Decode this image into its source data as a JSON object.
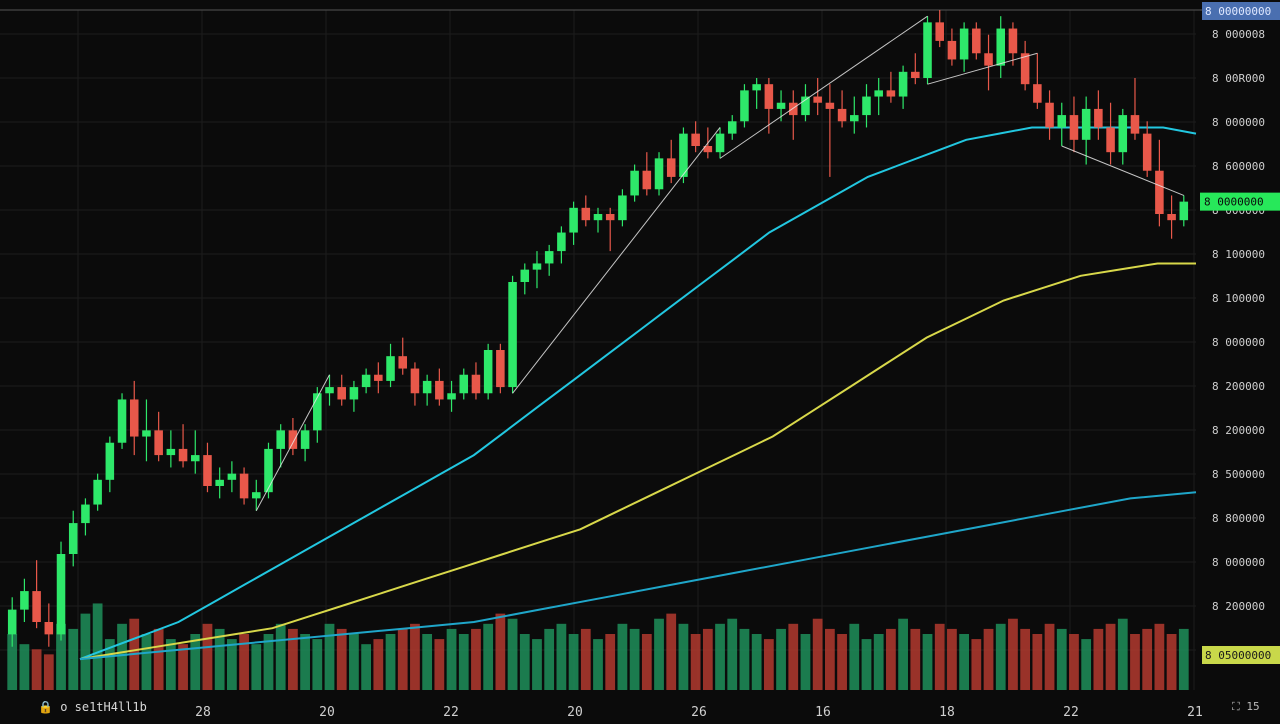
{
  "window": {
    "footer_label": "o se1tH4ll1b",
    "footer_lock_icon": "lock-icon",
    "footer_right_icon": "fullscreen-icon",
    "footer_right_label": "15"
  },
  "colors": {
    "background": "#0b0b0b",
    "grid": "#1d1d1d",
    "up": "#2ee86a",
    "down": "#e8584a",
    "vol_up": "#1f8f5a",
    "vol_down": "#b3392f",
    "ma_cyan": "#22c7e0",
    "ma_yellow": "#d8d84a",
    "ma_low_cyan": "#1fa6c9",
    "trend_white": "#e6e6e6",
    "price_label_green": "#27e85a",
    "price_label_blue": "#4a6fb0",
    "price_label_yellow": "#c9d84a"
  },
  "chart_data": {
    "type": "candlestick",
    "title": "",
    "xlabel": "",
    "ylabel": "",
    "x_tick_labels": [
      "28",
      "20",
      "22",
      "20",
      "26",
      "16",
      "18",
      "22",
      "21"
    ],
    "y_tick_labels": [
      "8 000008",
      "8 00R000",
      "8 000000",
      "8 600000",
      "8 000000",
      "8 100000",
      "8 100000",
      "8 000000",
      "8 200000",
      "8 200000",
      "8 500000",
      "8 800000",
      "8 000000",
      "8 200000",
      "8 200000"
    ],
    "ylim": [
      0,
      100
    ],
    "current_price_label": "8 0000000",
    "top_price_label": "8 00000000",
    "lower_price_label": "8 05000000",
    "candles": [
      {
        "o": 4,
        "h": 10,
        "l": 2,
        "c": 8
      },
      {
        "o": 8,
        "h": 13,
        "l": 6,
        "c": 11
      },
      {
        "o": 11,
        "h": 16,
        "l": 5,
        "c": 6
      },
      {
        "o": 6,
        "h": 9,
        "l": 2,
        "c": 4
      },
      {
        "o": 4,
        "h": 19,
        "l": 3,
        "c": 17
      },
      {
        "o": 17,
        "h": 24,
        "l": 15,
        "c": 22
      },
      {
        "o": 22,
        "h": 26,
        "l": 20,
        "c": 25
      },
      {
        "o": 25,
        "h": 30,
        "l": 24,
        "c": 29
      },
      {
        "o": 29,
        "h": 36,
        "l": 27,
        "c": 35
      },
      {
        "o": 35,
        "h": 43,
        "l": 34,
        "c": 42
      },
      {
        "o": 42,
        "h": 45,
        "l": 33,
        "c": 36
      },
      {
        "o": 36,
        "h": 42,
        "l": 32,
        "c": 37
      },
      {
        "o": 37,
        "h": 40,
        "l": 32,
        "c": 33
      },
      {
        "o": 33,
        "h": 37,
        "l": 31,
        "c": 34
      },
      {
        "o": 34,
        "h": 38,
        "l": 31,
        "c": 32
      },
      {
        "o": 32,
        "h": 37,
        "l": 30,
        "c": 33
      },
      {
        "o": 33,
        "h": 35,
        "l": 27,
        "c": 28
      },
      {
        "o": 28,
        "h": 31,
        "l": 26,
        "c": 29
      },
      {
        "o": 29,
        "h": 32,
        "l": 27,
        "c": 30
      },
      {
        "o": 30,
        "h": 31,
        "l": 25,
        "c": 26
      },
      {
        "o": 26,
        "h": 29,
        "l": 24,
        "c": 27
      },
      {
        "o": 27,
        "h": 35,
        "l": 26,
        "c": 34
      },
      {
        "o": 34,
        "h": 38,
        "l": 31,
        "c": 37
      },
      {
        "o": 37,
        "h": 39,
        "l": 33,
        "c": 34
      },
      {
        "o": 34,
        "h": 38,
        "l": 32,
        "c": 37
      },
      {
        "o": 37,
        "h": 44,
        "l": 35,
        "c": 43
      },
      {
        "o": 43,
        "h": 46,
        "l": 41,
        "c": 44
      },
      {
        "o": 44,
        "h": 46,
        "l": 41,
        "c": 42
      },
      {
        "o": 42,
        "h": 45,
        "l": 40,
        "c": 44
      },
      {
        "o": 44,
        "h": 47,
        "l": 43,
        "c": 46
      },
      {
        "o": 46,
        "h": 48,
        "l": 43,
        "c": 45
      },
      {
        "o": 45,
        "h": 51,
        "l": 44,
        "c": 49
      },
      {
        "o": 49,
        "h": 52,
        "l": 46,
        "c": 47
      },
      {
        "o": 47,
        "h": 48,
        "l": 41,
        "c": 43
      },
      {
        "o": 43,
        "h": 46,
        "l": 41,
        "c": 45
      },
      {
        "o": 45,
        "h": 47,
        "l": 41,
        "c": 42
      },
      {
        "o": 42,
        "h": 45,
        "l": 40,
        "c": 43
      },
      {
        "o": 43,
        "h": 47,
        "l": 42,
        "c": 46
      },
      {
        "o": 46,
        "h": 48,
        "l": 42,
        "c": 43
      },
      {
        "o": 43,
        "h": 51,
        "l": 42,
        "c": 50
      },
      {
        "o": 50,
        "h": 51,
        "l": 43,
        "c": 44
      },
      {
        "o": 44,
        "h": 62,
        "l": 43,
        "c": 61
      },
      {
        "o": 61,
        "h": 64,
        "l": 59,
        "c": 63
      },
      {
        "o": 63,
        "h": 66,
        "l": 60,
        "c": 64
      },
      {
        "o": 64,
        "h": 67,
        "l": 62,
        "c": 66
      },
      {
        "o": 66,
        "h": 70,
        "l": 64,
        "c": 69
      },
      {
        "o": 69,
        "h": 74,
        "l": 67,
        "c": 73
      },
      {
        "o": 73,
        "h": 75,
        "l": 70,
        "c": 71
      },
      {
        "o": 71,
        "h": 73,
        "l": 69,
        "c": 72
      },
      {
        "o": 72,
        "h": 73,
        "l": 66,
        "c": 71
      },
      {
        "o": 71,
        "h": 76,
        "l": 70,
        "c": 75
      },
      {
        "o": 75,
        "h": 80,
        "l": 74,
        "c": 79
      },
      {
        "o": 79,
        "h": 82,
        "l": 75,
        "c": 76
      },
      {
        "o": 76,
        "h": 82,
        "l": 75,
        "c": 81
      },
      {
        "o": 81,
        "h": 84,
        "l": 77,
        "c": 78
      },
      {
        "o": 78,
        "h": 86,
        "l": 77,
        "c": 85
      },
      {
        "o": 85,
        "h": 87,
        "l": 82,
        "c": 83
      },
      {
        "o": 83,
        "h": 86,
        "l": 81,
        "c": 82
      },
      {
        "o": 82,
        "h": 86,
        "l": 81,
        "c": 85
      },
      {
        "o": 85,
        "h": 88,
        "l": 84,
        "c": 87
      },
      {
        "o": 87,
        "h": 93,
        "l": 86,
        "c": 92
      },
      {
        "o": 92,
        "h": 94,
        "l": 89,
        "c": 93
      },
      {
        "o": 93,
        "h": 94,
        "l": 85,
        "c": 89
      },
      {
        "o": 89,
        "h": 92,
        "l": 87,
        "c": 90
      },
      {
        "o": 90,
        "h": 92,
        "l": 84,
        "c": 88
      },
      {
        "o": 88,
        "h": 93,
        "l": 87,
        "c": 91
      },
      {
        "o": 91,
        "h": 94,
        "l": 88,
        "c": 90
      },
      {
        "o": 90,
        "h": 93,
        "l": 78,
        "c": 89
      },
      {
        "o": 89,
        "h": 92,
        "l": 86,
        "c": 87
      },
      {
        "o": 87,
        "h": 91,
        "l": 85,
        "c": 88
      },
      {
        "o": 88,
        "h": 93,
        "l": 86,
        "c": 91
      },
      {
        "o": 91,
        "h": 94,
        "l": 88,
        "c": 92
      },
      {
        "o": 92,
        "h": 95,
        "l": 90,
        "c": 91
      },
      {
        "o": 91,
        "h": 96,
        "l": 89,
        "c": 95
      },
      {
        "o": 95,
        "h": 98,
        "l": 93,
        "c": 94
      },
      {
        "o": 94,
        "h": 104,
        "l": 93,
        "c": 103
      },
      {
        "o": 103,
        "h": 105,
        "l": 99,
        "c": 100
      },
      {
        "o": 100,
        "h": 102,
        "l": 96,
        "c": 97
      },
      {
        "o": 97,
        "h": 103,
        "l": 95,
        "c": 102
      },
      {
        "o": 102,
        "h": 103,
        "l": 97,
        "c": 98
      },
      {
        "o": 98,
        "h": 101,
        "l": 92,
        "c": 96
      },
      {
        "o": 96,
        "h": 104,
        "l": 94,
        "c": 102
      },
      {
        "o": 102,
        "h": 103,
        "l": 96,
        "c": 98
      },
      {
        "o": 98,
        "h": 100,
        "l": 92,
        "c": 93
      },
      {
        "o": 93,
        "h": 98,
        "l": 89,
        "c": 90
      },
      {
        "o": 90,
        "h": 92,
        "l": 84,
        "c": 86
      },
      {
        "o": 86,
        "h": 90,
        "l": 83,
        "c": 88
      },
      {
        "o": 88,
        "h": 91,
        "l": 82,
        "c": 84
      },
      {
        "o": 84,
        "h": 91,
        "l": 80,
        "c": 89
      },
      {
        "o": 89,
        "h": 92,
        "l": 84,
        "c": 86
      },
      {
        "o": 86,
        "h": 90,
        "l": 80,
        "c": 82
      },
      {
        "o": 82,
        "h": 89,
        "l": 80,
        "c": 88
      },
      {
        "o": 88,
        "h": 94,
        "l": 84,
        "c": 85
      },
      {
        "o": 85,
        "h": 87,
        "l": 78,
        "c": 79
      },
      {
        "o": 79,
        "h": 84,
        "l": 70,
        "c": 72
      },
      {
        "o": 72,
        "h": 75,
        "l": 68,
        "c": 71
      },
      {
        "o": 71,
        "h": 75,
        "l": 70,
        "c": 74
      }
    ],
    "volume": [
      22,
      18,
      16,
      14,
      26,
      24,
      30,
      34,
      20,
      26,
      28,
      22,
      24,
      20,
      18,
      22,
      26,
      24,
      20,
      22,
      18,
      22,
      26,
      24,
      22,
      20,
      26,
      24,
      22,
      18,
      20,
      22,
      24,
      26,
      22,
      20,
      24,
      22,
      24,
      26,
      30,
      28,
      22,
      20,
      24,
      26,
      22,
      24,
      20,
      22,
      26,
      24,
      22,
      28,
      30,
      26,
      22,
      24,
      26,
      28,
      24,
      22,
      20,
      24,
      26,
      22,
      28,
      24,
      22,
      26,
      20,
      22,
      24,
      28,
      24,
      22,
      26,
      24,
      22,
      20,
      24,
      26,
      28,
      24,
      22,
      26,
      24,
      22,
      20,
      24,
      26,
      28,
      22,
      24,
      26,
      22,
      24
    ],
    "volume_max": 55,
    "moving_averages": [
      {
        "color_key": "ma_cyan",
        "values": [
          0,
          2,
          4,
          6,
          9,
          12,
          15,
          18,
          21,
          24,
          27,
          30,
          33,
          37,
          41,
          45,
          49,
          53,
          57,
          61,
          65,
          69,
          72,
          75,
          78,
          80,
          82,
          84,
          85,
          86,
          86,
          86,
          86,
          86,
          85
        ]
      },
      {
        "color_key": "ma_yellow",
        "values": [
          0,
          1,
          2,
          3,
          4,
          5,
          7,
          9,
          11,
          13,
          15,
          17,
          19,
          21,
          24,
          27,
          30,
          33,
          36,
          40,
          44,
          48,
          52,
          55,
          58,
          60,
          62,
          63,
          64,
          64
        ]
      },
      {
        "color_key": "ma_low_cyan",
        "values": [
          0,
          1,
          2,
          3,
          4,
          5,
          6,
          8,
          10,
          12,
          14,
          16,
          18,
          20,
          22,
          24,
          26,
          27
        ]
      }
    ]
  }
}
